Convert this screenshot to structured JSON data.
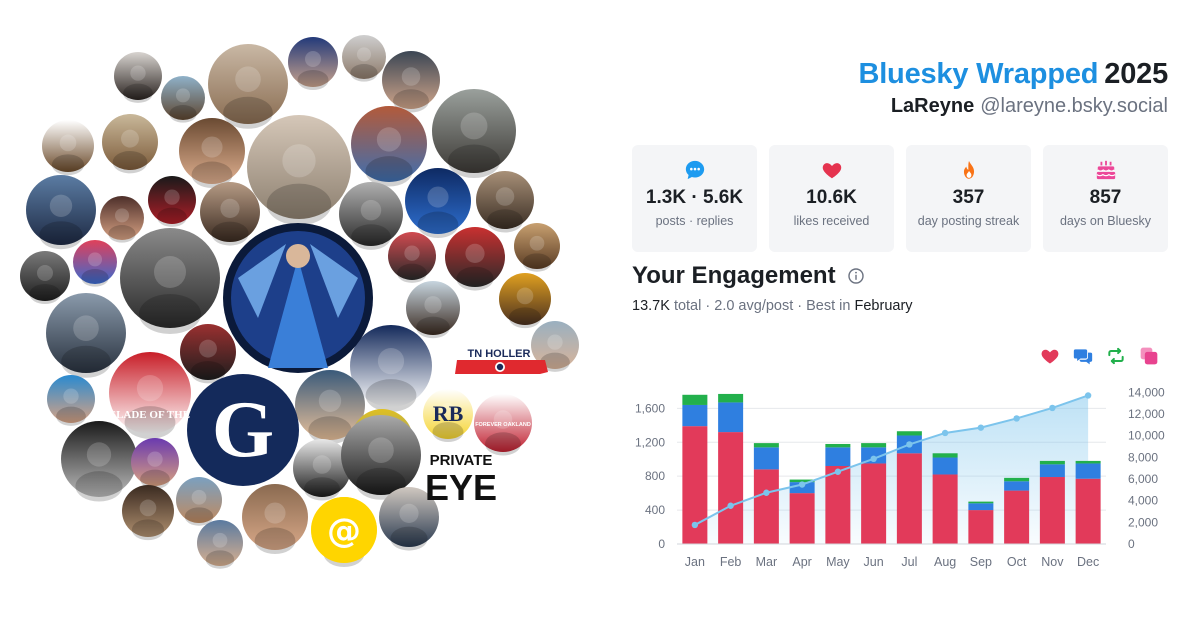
{
  "header": {
    "brand": "Bluesky Wrapped",
    "year": "2025",
    "display_name": "LaReyne",
    "handle": "@lareyne.bsky.social"
  },
  "stats": [
    {
      "icon": "chat-bubble-icon",
      "color": "#1d9bf0",
      "value": "1.3K · 5.6K",
      "label": "posts · replies"
    },
    {
      "icon": "heart-icon",
      "color": "#e5334f",
      "value": "10.6K",
      "label": "likes received"
    },
    {
      "icon": "flame-icon",
      "color": "#f97316",
      "value": "357",
      "label": "day posting streak"
    },
    {
      "icon": "cake-icon",
      "color": "#ec4899",
      "value": "857",
      "label": "days on Bluesky"
    }
  ],
  "engagement": {
    "title": "Your Engagement",
    "total": "13.7K",
    "total_label": "total",
    "avg": "2.0 avg/post",
    "best_prefix": "Best in",
    "best_month": "February",
    "separator": " · "
  },
  "legend": [
    {
      "icon": "heart-icon",
      "name": "likes",
      "color": "#e23a5a"
    },
    {
      "icon": "reply-icon",
      "name": "replies",
      "color": "#2f7fe0"
    },
    {
      "icon": "repost-icon",
      "name": "reposts",
      "color": "#22b04c"
    },
    {
      "icon": "quote-icon",
      "name": "quotes",
      "color": "#e8438f"
    }
  ],
  "chart_data": {
    "type": "bar",
    "stacked": true,
    "categories": [
      "Jan",
      "Feb",
      "Mar",
      "Apr",
      "May",
      "Jun",
      "Jul",
      "Aug",
      "Sep",
      "Oct",
      "Nov",
      "Dec"
    ],
    "series": [
      {
        "key": "likes",
        "color": "#e23a5a",
        "values": [
          1390,
          1320,
          880,
          600,
          920,
          950,
          1070,
          820,
          400,
          630,
          790,
          770
        ]
      },
      {
        "key": "replies",
        "color": "#2f7fe0",
        "values": [
          250,
          350,
          260,
          130,
          220,
          190,
          210,
          200,
          80,
          110,
          150,
          180
        ]
      },
      {
        "key": "reposts",
        "color": "#22b04c",
        "values": [
          120,
          100,
          50,
          30,
          40,
          50,
          50,
          50,
          20,
          40,
          40,
          30
        ]
      }
    ],
    "cumulative": {
      "color": "#7cc4ec",
      "values": [
        1760,
        3530,
        4730,
        5490,
        6670,
        7860,
        9190,
        10250,
        10740,
        11590,
        12560,
        13710
      ]
    },
    "y_left": {
      "ticks": [
        0,
        400,
        800,
        1200,
        1600
      ],
      "tick_labels": [
        "0",
        "400",
        "800",
        "1,200",
        "1,600"
      ],
      "range": [
        0,
        1840
      ]
    },
    "y_right": {
      "ticks": [
        0,
        2000,
        4000,
        6000,
        8000,
        10000,
        12000,
        14000
      ],
      "tick_labels": [
        "0",
        "2,000",
        "4,000",
        "6,000",
        "8,000",
        "10,000",
        "12,000",
        "14,000"
      ],
      "range": [
        0,
        14400
      ]
    },
    "grid": true
  },
  "collage": {
    "avatars": [
      {
        "name": "avatar-youth-dark-hair",
        "c1": "#d8d4d0",
        "c2": "#2a2320"
      },
      {
        "name": "avatar-man-sunglasses-outdoor",
        "c1": "#8fb1c9",
        "c2": "#5e4630"
      },
      {
        "name": "avatar-cat",
        "c1": "#c9b8a5",
        "c2": "#8a6d52"
      },
      {
        "name": "avatar-couple-flags",
        "c1": "#233a7a",
        "c2": "#c8a28c"
      },
      {
        "name": "avatar-older-man",
        "c1": "#cfcfcf",
        "c2": "#8d7a6a"
      },
      {
        "name": "avatar-man-smiling-grey",
        "c1": "#3b4654",
        "c2": "#d0a58a"
      },
      {
        "name": "avatar-dog-sketch",
        "c1": "#ffffff",
        "c2": "#6b4a2a"
      },
      {
        "name": "avatar-meme-cartoon",
        "c1": "#c9b89a",
        "c2": "#7c5b3a"
      },
      {
        "name": "avatar-bald-man",
        "c1": "#6a4a32",
        "c2": "#e0b090"
      },
      {
        "name": "avatar-grey-hair-man",
        "c1": "#d5c7b8",
        "c2": "#8d8070"
      },
      {
        "name": "avatar-man-brick",
        "c1": "#b35a3a",
        "c2": "#3f6fb0"
      },
      {
        "name": "avatar-man-suit-grey",
        "c1": "#9aa09c",
        "c2": "#3d3a36"
      },
      {
        "name": "avatar-man-suit-blue",
        "c1": "#5b7ca3",
        "c2": "#1e2a44"
      },
      {
        "name": "avatar-bald-older",
        "c1": "#4d2f2a",
        "c2": "#d7a284"
      },
      {
        "name": "avatar-red-pattern",
        "c1": "#1a1a1a",
        "c2": "#b01e28"
      },
      {
        "name": "avatar-woman-dark-hair",
        "c1": "#b69b85",
        "c2": "#3a2a20"
      },
      {
        "name": "avatar-sunglasses-man",
        "c1": "#b0b0b0",
        "c2": "#2a2a2a"
      },
      {
        "name": "avatar-goddess-art",
        "c1": "#0e2a63",
        "c2": "#2e6fd0"
      },
      {
        "name": "avatar-vintage-woman",
        "c1": "#a89078",
        "c2": "#3a2e24"
      },
      {
        "name": "avatar-young-man-glasses",
        "c1": "#c8a070",
        "c2": "#5a3c24"
      },
      {
        "name": "avatar-man-black-white",
        "c1": "#7a7a7a",
        "c2": "#1e1e1e"
      },
      {
        "name": "avatar-rainbow-silhouette",
        "c1": "#e0405a",
        "c2": "#3a6bd0"
      },
      {
        "name": "avatar-crowd-bw",
        "c1": "#8a8a8a",
        "c2": "#2a2a2a"
      },
      {
        "name": "avatar-bands",
        "c1": "#d04a50",
        "c2": "#2a2a2a"
      },
      {
        "name": "avatar-man-guitar",
        "c1": "#c93030",
        "c2": "#2a2a2a"
      },
      {
        "name": "avatar-man-suit-glasses",
        "c1": "#8a9aab",
        "c2": "#2a3340"
      },
      {
        "name": "avatar-woman-patterned",
        "c1": "#9a3030",
        "c2": "#1e1e1e"
      },
      {
        "name": "avatar-woman-phone",
        "c1": "#c7d5df",
        "c2": "#3a2a20"
      },
      {
        "name": "avatar-man-orange-shirt",
        "c1": "#e0a020",
        "c2": "#4a3020"
      },
      {
        "name": "avatar-older-asian-man",
        "c1": "#9ab0c0",
        "c2": "#d8b49a"
      },
      {
        "name": "avatar-woman-blue",
        "c1": "#2a8ad0",
        "c2": "#d7a284"
      },
      {
        "name": "avatar-rising-sun",
        "c1": "#c81e28",
        "c2": "#ffffff"
      },
      {
        "name": "avatar-guardian-logo",
        "c1": "#142a5b",
        "c2": "#ffffff"
      },
      {
        "name": "avatar-man-blond",
        "c1": "#3a5a7a",
        "c2": "#e8c09a"
      },
      {
        "name": "avatar-yellow-field",
        "c1": "#e0c020",
        "c2": "#6a8ab0"
      },
      {
        "name": "avatar-minion",
        "c1": "#ffffff",
        "c2": "#f5d430"
      },
      {
        "name": "avatar-rb-logo",
        "c1": "#ffffff",
        "c2": "#c02030"
      },
      {
        "name": "avatar-forever-oakland",
        "c1": "#1a1a1a",
        "c2": "#bbbbbb"
      },
      {
        "name": "avatar-laughing-man",
        "c1": "#6a3ab0",
        "c2": "#d8a080"
      },
      {
        "name": "avatar-swastika-cartoon",
        "c1": "#e8e8e8",
        "c2": "#1a1a1a"
      },
      {
        "name": "avatar-man-bw-portrait",
        "c1": "#aaaaaa",
        "c2": "#1a1a1a"
      },
      {
        "name": "avatar-dark-figure",
        "c1": "#3a2a20",
        "c2": "#b09070"
      },
      {
        "name": "avatar-woman-blazer",
        "c1": "#7aa0c0",
        "c2": "#c08a60"
      },
      {
        "name": "avatar-man-sweater",
        "c1": "#8a6a50",
        "c2": "#d8a888"
      },
      {
        "name": "avatar-man-glasses-smile",
        "c1": "#5a7aa0",
        "c2": "#d8b090"
      },
      {
        "name": "avatar-at-logo",
        "c1": "#ffd500",
        "c2": "#ffffff"
      },
      {
        "name": "avatar-man-young-suit",
        "c1": "#d0c8c0",
        "c2": "#2a3a50"
      }
    ],
    "tn_holler": "TN HOLLER",
    "rb_logo": "RB",
    "oakland_text": "FOREVER OAKLAND",
    "private_eye_line1": "PRIVATE",
    "private_eye_line2": "EYE",
    "guardian_letter": "G",
    "at_symbol": "@",
    "slade_text": "SLADE OF THE"
  }
}
